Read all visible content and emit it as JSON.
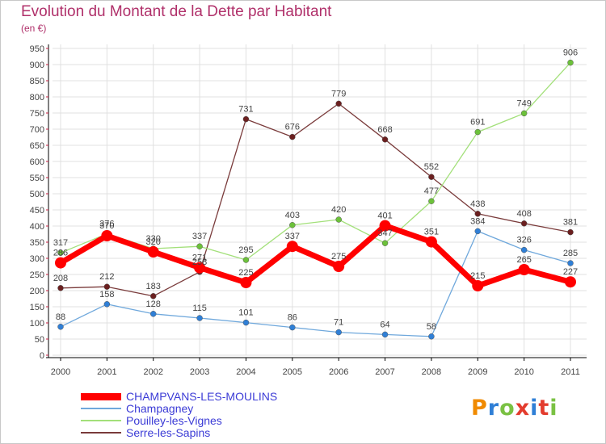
{
  "header": {
    "title": "Evolution du Montant de la Dette par Habitant",
    "subtitle": "(en €)"
  },
  "logo": {
    "text": "Proxiti",
    "colors": [
      "#f08a00",
      "#2f7fd6",
      "#7ac143",
      "#e33c2e",
      "#2f7fd6",
      "#e33c2e",
      "#7ac143"
    ]
  },
  "colors": {
    "grid": "#e0e0e0",
    "axis": "#000000",
    "text": "#444444"
  },
  "chart_data": {
    "type": "line",
    "x": [
      "2000",
      "2001",
      "2002",
      "2003",
      "2004",
      "2005",
      "2006",
      "2007",
      "2008",
      "2009",
      "2010",
      "2011"
    ],
    "ylim": [
      0,
      950
    ],
    "yticks": [
      0,
      50,
      100,
      150,
      200,
      250,
      300,
      350,
      400,
      450,
      500,
      550,
      600,
      650,
      700,
      750,
      800,
      850,
      900,
      950
    ],
    "grid": true,
    "legend_position": "bottom-left",
    "series": [
      {
        "name": "CHAMPVANS-LES-MOULINS",
        "color": "#ff0000",
        "marker_color": "#ff0000",
        "width": 7,
        "marker": 7,
        "values": [
          286,
          370,
          320,
          271,
          225,
          337,
          275,
          401,
          351,
          215,
          265,
          227
        ]
      },
      {
        "name": "Champagney",
        "color": "#6fa8dc",
        "marker_color": "#2f7fd6",
        "width": 1.3,
        "marker": 3.5,
        "values": [
          88,
          158,
          128,
          115,
          101,
          86,
          71,
          64,
          58,
          384,
          326,
          285
        ]
      },
      {
        "name": "Pouilley-les-Vignes",
        "color": "#a3e07a",
        "marker_color": "#6cc13a",
        "width": 1.3,
        "marker": 3.5,
        "values": [
          317,
          376,
          330,
          337,
          295,
          403,
          420,
          347,
          477,
          691,
          749,
          906
        ]
      },
      {
        "name": "Serre-les-Sapins",
        "color": "#7a3b3b",
        "marker_color": "#6b1f1f",
        "width": 1.3,
        "marker": 3.5,
        "values": [
          208,
          212,
          183,
          258,
          731,
          676,
          779,
          668,
          552,
          438,
          408,
          381
        ]
      }
    ]
  }
}
